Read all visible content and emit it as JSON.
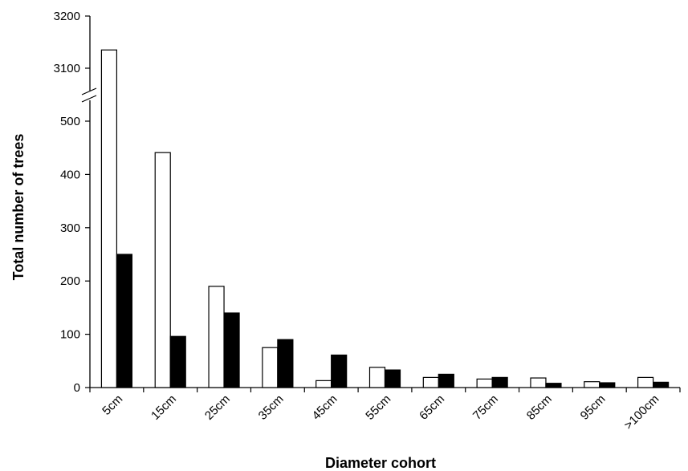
{
  "chart_data": {
    "type": "bar",
    "xlabel": "Diameter cohort",
    "ylabel": "Total number of trees",
    "categories": [
      "5cm",
      "15cm",
      "25cm",
      "35cm",
      "45cm",
      "55cm",
      "65cm",
      "75cm",
      "85cm",
      "95cm",
      ">100cm"
    ],
    "series": [
      {
        "values": [
          3135,
          441,
          190,
          75,
          13,
          38,
          19,
          16,
          18,
          11,
          19
        ],
        "color": "#ffffff"
      },
      {
        "values": [
          250,
          96,
          140,
          90,
          61,
          33,
          25,
          19,
          8,
          9,
          10
        ],
        "color": "#000000"
      }
    ],
    "y_axis": {
      "scale": "broken",
      "lower_range": [
        0,
        500
      ],
      "upper_range": [
        3100,
        3200
      ],
      "tick_labels": [
        "0",
        "100",
        "200",
        "300",
        "400",
        "500",
        "3100",
        "3200"
      ],
      "break_marker": "//"
    },
    "grid": false,
    "legend": "none"
  }
}
